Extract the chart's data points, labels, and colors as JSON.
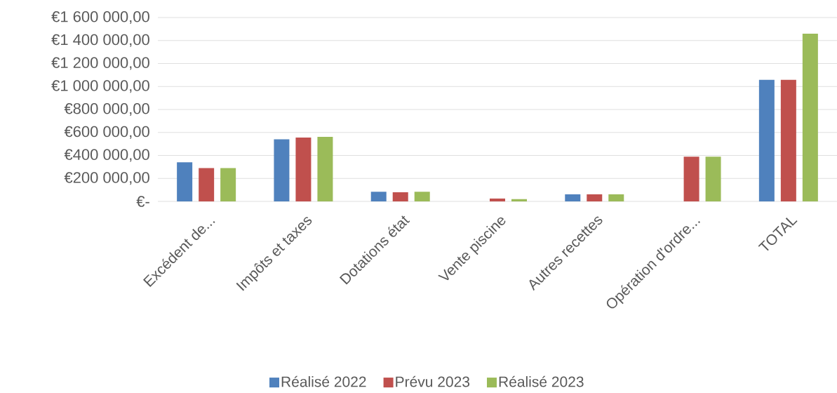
{
  "chart_data": {
    "type": "bar",
    "categories": [
      "Excédent de...",
      "Impôts et taxes",
      "Dotations état",
      "Vente piscine",
      "Autres recettes",
      "Opération d'ordre...",
      "TOTAL"
    ],
    "series": [
      {
        "name": "Réalisé 2022",
        "color": "#4f81bd",
        "values": [
          340000,
          540000,
          84000,
          null,
          62000,
          null,
          1060000
        ]
      },
      {
        "name": "Prévu 2023",
        "color": "#c0504d",
        "values": [
          290000,
          555000,
          80000,
          25000,
          62000,
          390000,
          1060000
        ]
      },
      {
        "name": "Réalisé 2023",
        "color": "#9bbb59",
        "values": [
          290000,
          562000,
          84000,
          20000,
          62000,
          390000,
          1460000
        ]
      }
    ],
    "ylim": [
      0,
      1600000
    ],
    "yticks": [
      {
        "value": 0,
        "label": "€-"
      },
      {
        "value": 200000,
        "label": "€200 000,00"
      },
      {
        "value": 400000,
        "label": "€400 000,00"
      },
      {
        "value": 600000,
        "label": "€600 000,00"
      },
      {
        "value": 800000,
        "label": "€800 000,00"
      },
      {
        "value": 1000000,
        "label": "€1 000 000,00"
      },
      {
        "value": 1200000,
        "label": "€1 200 000,00"
      },
      {
        "value": 1400000,
        "label": "€1 400 000,00"
      },
      {
        "value": 1600000,
        "label": "€1 600 000,00"
      }
    ],
    "grid": "y",
    "legend": "bottom"
  }
}
